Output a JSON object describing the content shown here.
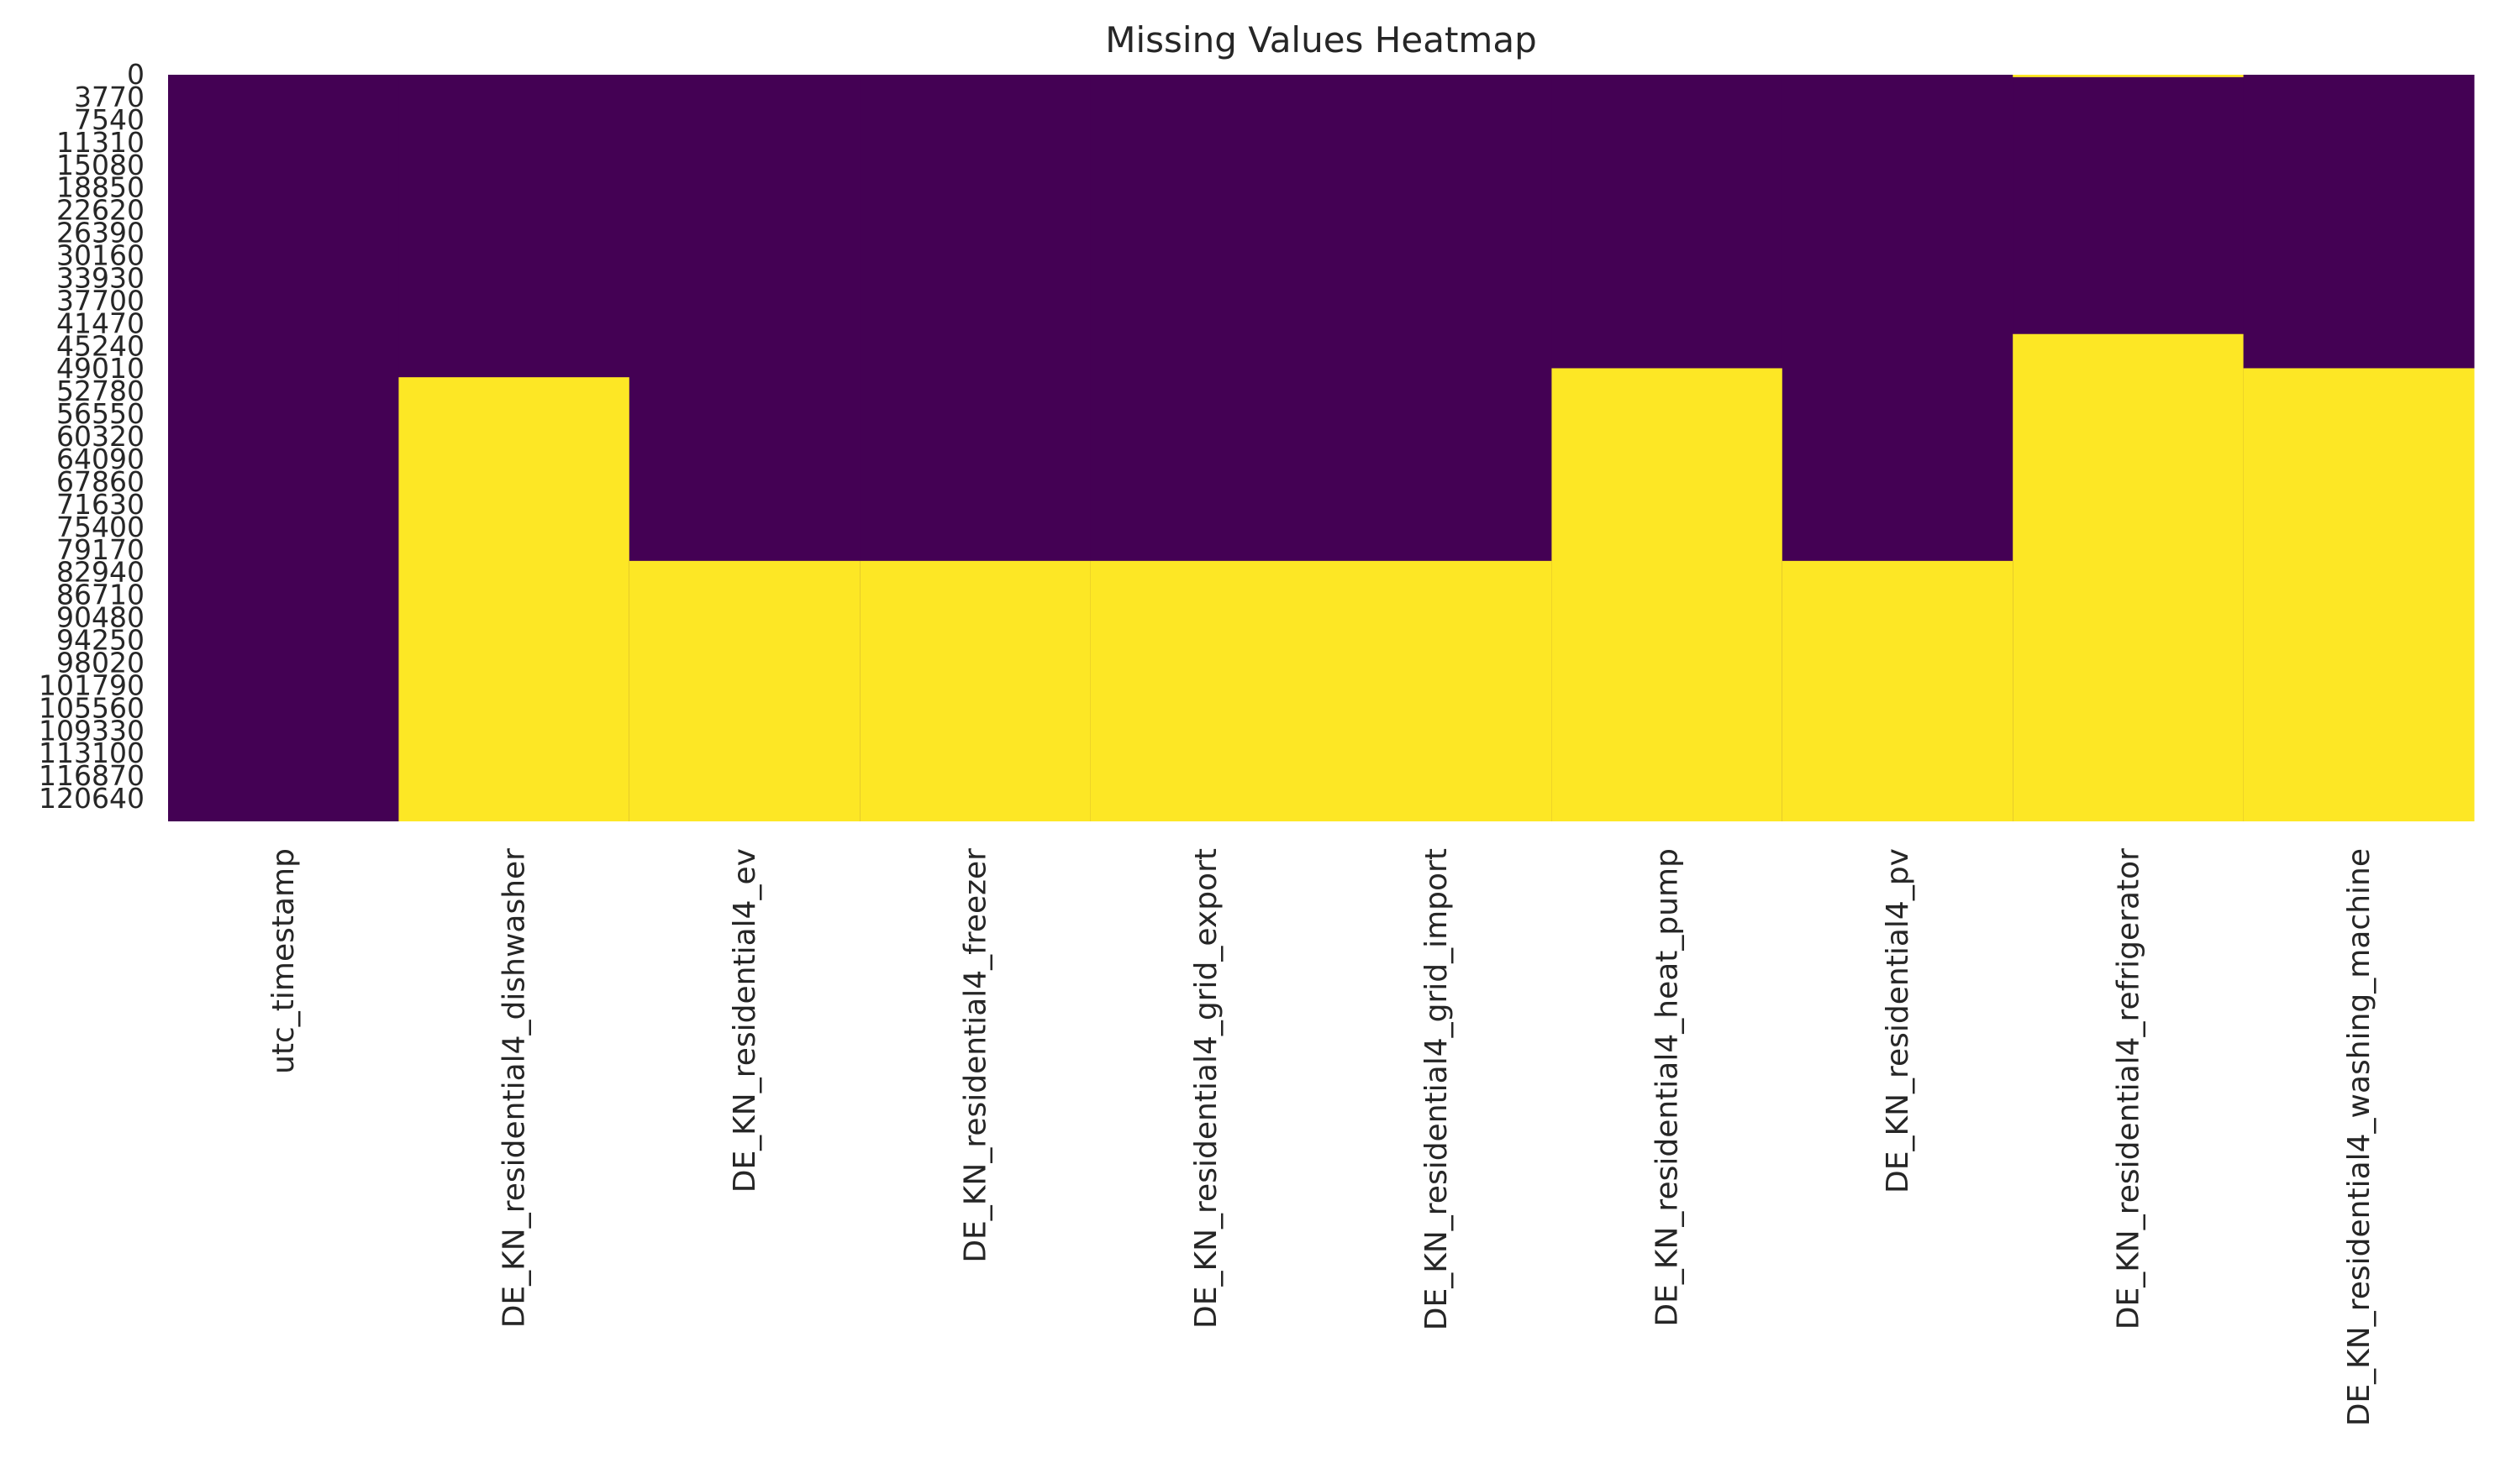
{
  "chart_data": {
    "type": "heatmap",
    "title": "Missing Values Heatmap",
    "xlabel": "",
    "ylabel": "",
    "grid": false,
    "legend": "none",
    "colormap": "viridis",
    "colors": {
      "present": "#440154",
      "missing": "#fde725"
    },
    "y_range": [
      0,
      124400
    ],
    "ytick_labels": [
      "0",
      "3770",
      "7540",
      "11310",
      "15080",
      "18850",
      "22620",
      "26390",
      "30160",
      "33930",
      "37700",
      "41470",
      "45240",
      "49010",
      "52780",
      "56550",
      "60320",
      "64090",
      "67860",
      "71630",
      "75400",
      "79170",
      "82940",
      "86710",
      "90480",
      "94250",
      "98020",
      "101790",
      "105560",
      "109330",
      "113100",
      "116870",
      "120640"
    ],
    "columns": [
      {
        "label": "utc_timestamp",
        "missing_ranges": []
      },
      {
        "label": "DE_KN_residential4_dishwasher",
        "missing_ranges": [
          [
            50400,
            124400
          ]
        ]
      },
      {
        "label": "DE_KN_residential4_ev",
        "missing_ranges": [
          [
            81000,
            124400
          ]
        ]
      },
      {
        "label": "DE_KN_residential4_freezer",
        "missing_ranges": [
          [
            81000,
            124400
          ]
        ]
      },
      {
        "label": "DE_KN_residential4_grid_export",
        "missing_ranges": [
          [
            81000,
            124400
          ]
        ]
      },
      {
        "label": "DE_KN_residential4_grid_import",
        "missing_ranges": [
          [
            81000,
            124400
          ]
        ]
      },
      {
        "label": "DE_KN_residential4_heat_pump",
        "missing_ranges": [
          [
            48900,
            124400
          ]
        ]
      },
      {
        "label": "DE_KN_residential4_pv",
        "missing_ranges": [
          [
            81000,
            124400
          ]
        ]
      },
      {
        "label": "DE_KN_residential4_refrigerator",
        "missing_ranges": [
          [
            0,
            400
          ],
          [
            43200,
            124400
          ]
        ]
      },
      {
        "label": "DE_KN_residential4_washing_machine",
        "missing_ranges": [
          [
            48900,
            124400
          ]
        ]
      }
    ]
  }
}
